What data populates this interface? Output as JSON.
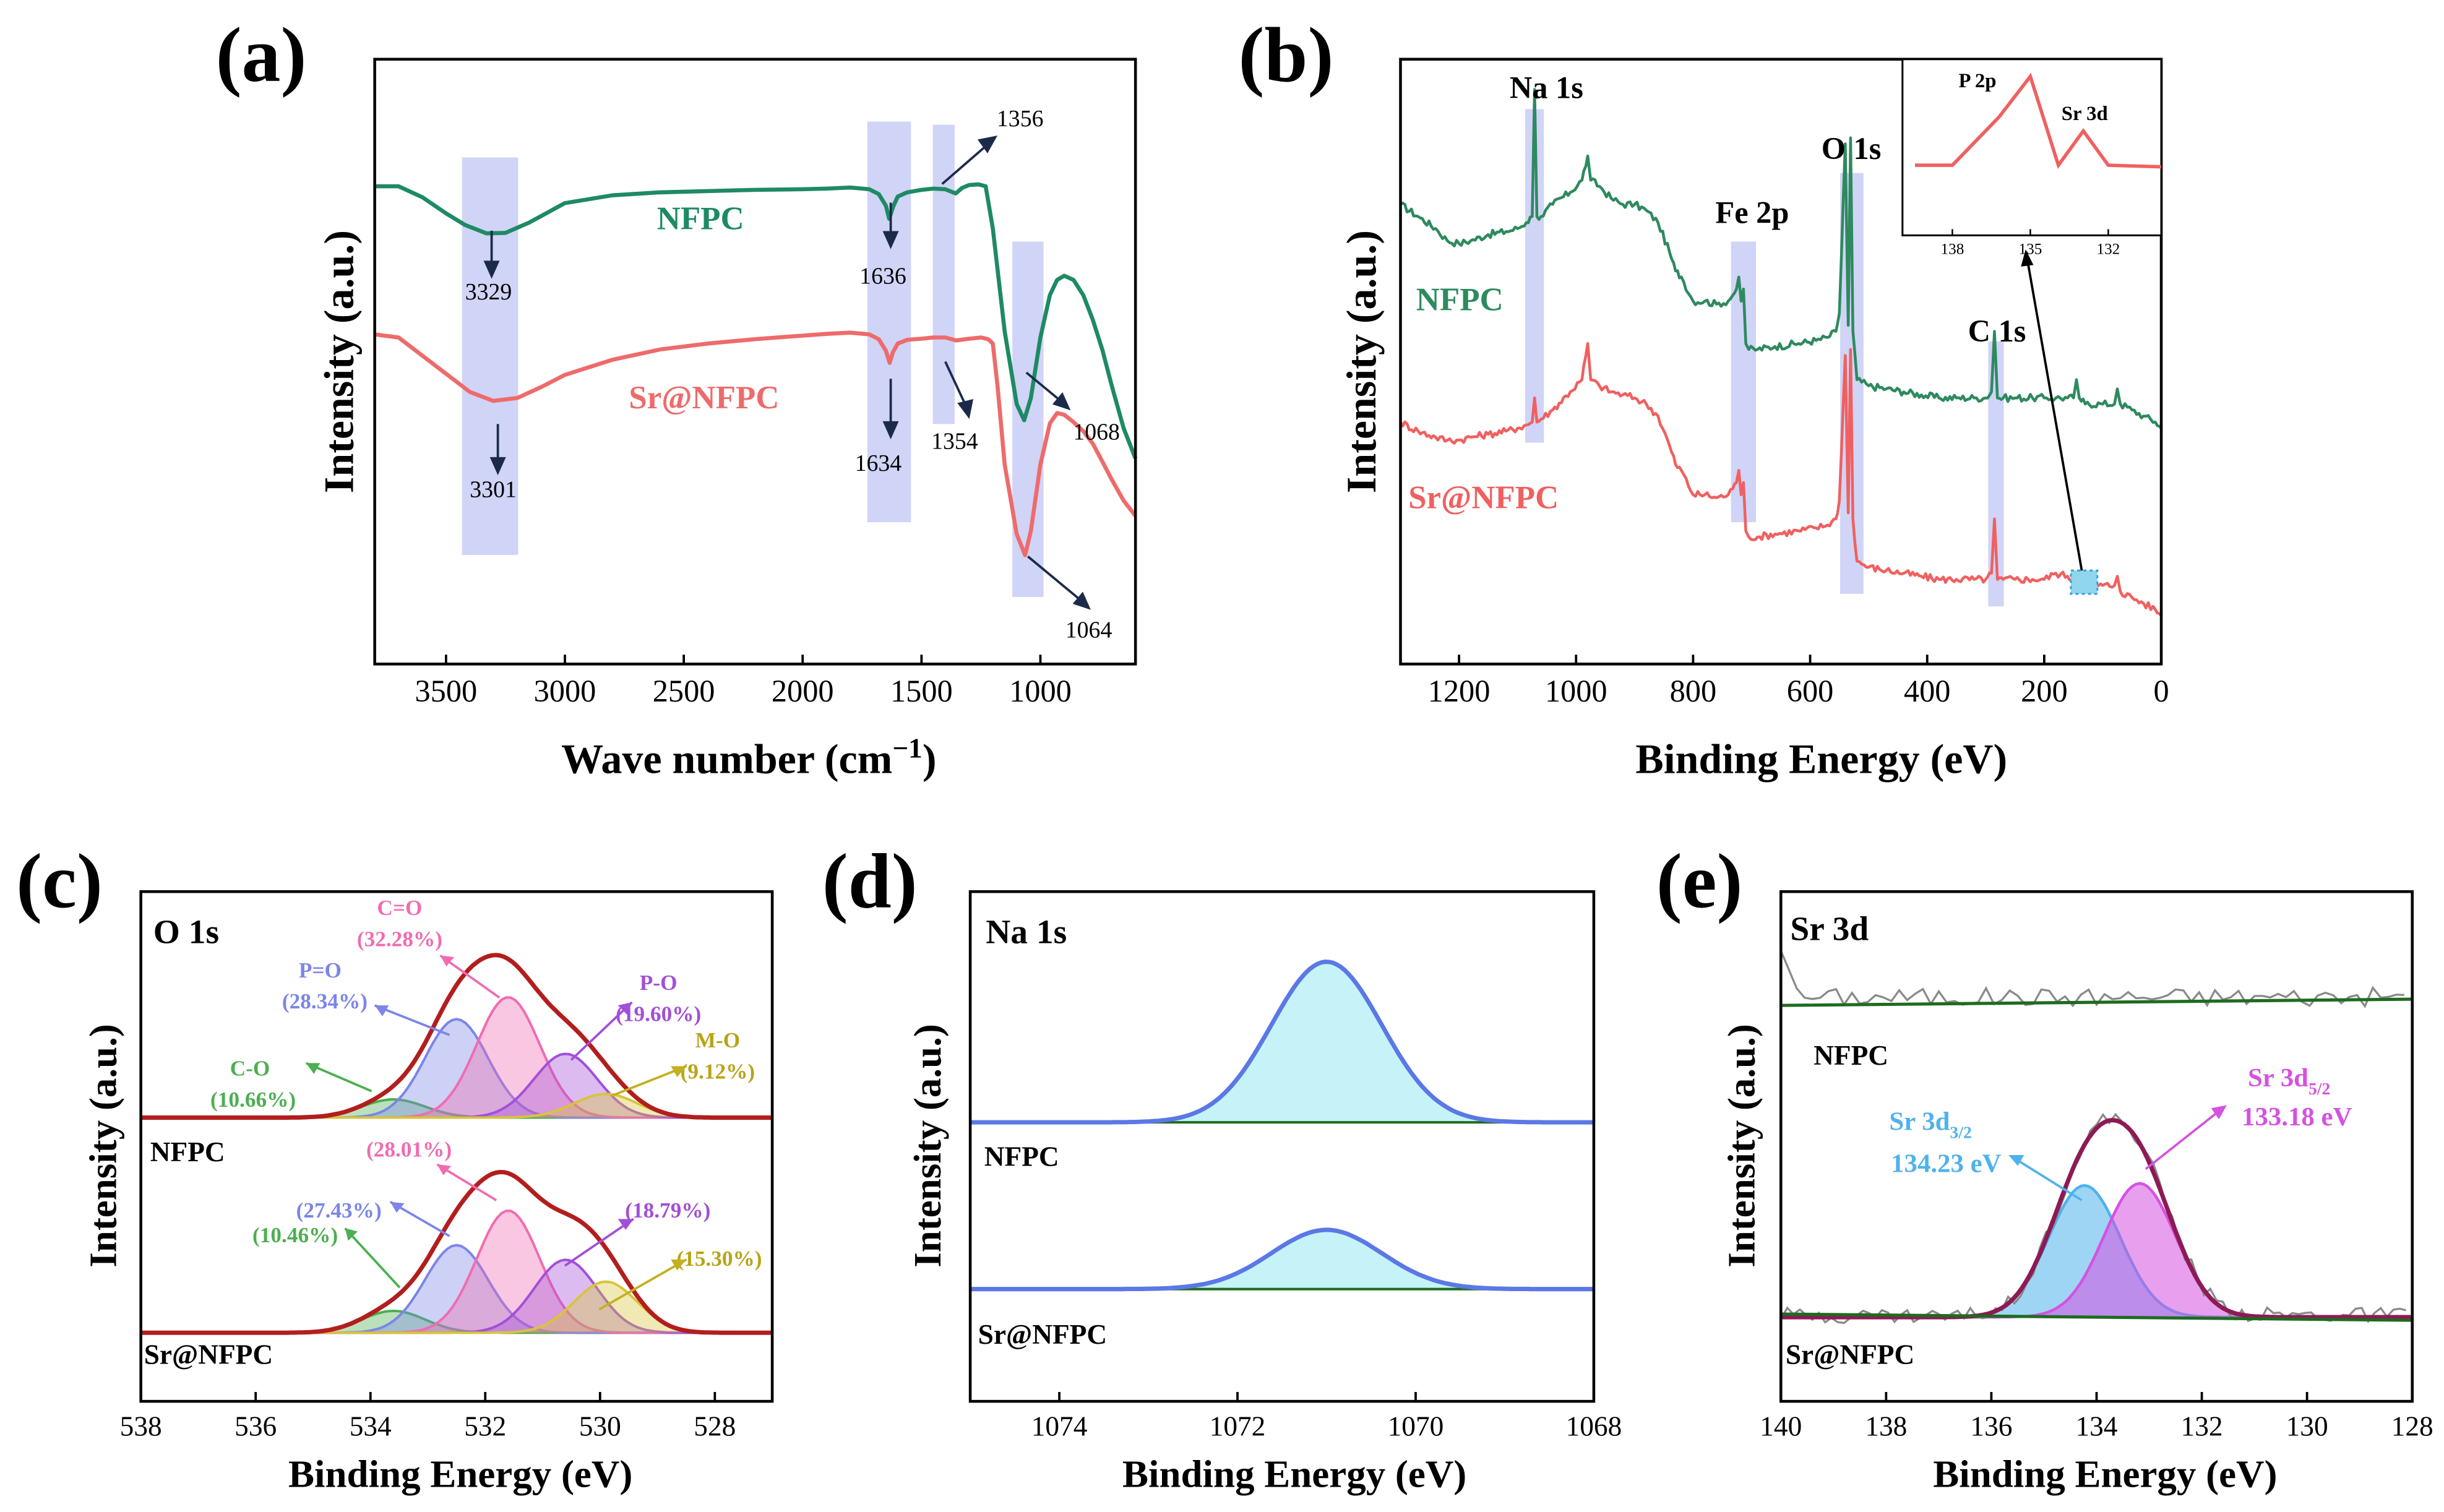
{
  "colors": {
    "nfpc_ftir": "#1e8a63",
    "sr_ftir": "#ee6b6b",
    "survey_nfpc": "#2e8a5e",
    "survey_sr": "#f06060",
    "highlight": "#c8ccf5",
    "envelope": "#b21e1e",
    "co": "#4caf50",
    "po": "#7c85e8",
    "cdo": "#f06cb0",
    "pso": "#a24fd8",
    "mo": "#d8c43b",
    "na": "#5b78e6",
    "sr32": "#4fb2ec",
    "sr52": "#d552e0",
    "sr_env": "#8d1a55",
    "baseline": "#1f6b1f",
    "raw": "#8a8a8a",
    "inset_line": "#f06060"
  },
  "chart_data": [
    {
      "panel": "(a)",
      "type": "line",
      "xlabel_main": "Wave number (cm",
      "xlabel_sup": "−1",
      "xlabel_end": ")",
      "ylabel": "Intensity (a.u.)",
      "xlim": [
        3800,
        600
      ],
      "ticks": [
        3500,
        3000,
        2500,
        2000,
        1500,
        1000
      ],
      "series": [
        {
          "name": "NFPC",
          "x": [
            3800,
            3700,
            3600,
            3500,
            3420,
            3330,
            3250,
            3150,
            3000,
            2800,
            2600,
            2400,
            2200,
            2000,
            1900,
            1800,
            1720,
            1680,
            1650,
            1636,
            1620,
            1600,
            1560,
            1500,
            1450,
            1400,
            1356,
            1330,
            1300,
            1260,
            1230,
            1200,
            1150,
            1100,
            1068,
            1040,
            1000,
            960,
            930,
            900,
            860,
            820,
            780,
            740,
            700,
            650,
            600
          ],
          "y": [
            0.79,
            0.79,
            0.772,
            0.745,
            0.726,
            0.712,
            0.713,
            0.73,
            0.762,
            0.775,
            0.78,
            0.782,
            0.784,
            0.785,
            0.786,
            0.788,
            0.785,
            0.777,
            0.758,
            0.736,
            0.756,
            0.773,
            0.78,
            0.784,
            0.786,
            0.785,
            0.778,
            0.787,
            0.792,
            0.793,
            0.79,
            0.72,
            0.55,
            0.43,
            0.403,
            0.44,
            0.54,
            0.61,
            0.635,
            0.642,
            0.635,
            0.61,
            0.57,
            0.52,
            0.46,
            0.39,
            0.34
          ]
        },
        {
          "name": "Sr@NFPC",
          "x": [
            3800,
            3700,
            3600,
            3500,
            3400,
            3301,
            3200,
            3100,
            3000,
            2800,
            2600,
            2400,
            2200,
            2000,
            1900,
            1800,
            1720,
            1680,
            1650,
            1634,
            1620,
            1600,
            1560,
            1500,
            1450,
            1400,
            1354,
            1300,
            1250,
            1220,
            1200,
            1180,
            1150,
            1100,
            1064,
            1040,
            1000,
            960,
            930,
            900,
            860,
            820,
            780,
            740,
            700,
            650,
            600
          ],
          "y": [
            0.545,
            0.54,
            0.51,
            0.48,
            0.45,
            0.435,
            0.44,
            0.458,
            0.478,
            0.503,
            0.52,
            0.53,
            0.537,
            0.543,
            0.546,
            0.548,
            0.545,
            0.537,
            0.518,
            0.498,
            0.516,
            0.53,
            0.536,
            0.538,
            0.54,
            0.54,
            0.535,
            0.538,
            0.54,
            0.537,
            0.53,
            0.46,
            0.33,
            0.215,
            0.18,
            0.22,
            0.33,
            0.398,
            0.415,
            0.412,
            0.4,
            0.385,
            0.365,
            0.335,
            0.305,
            0.27,
            0.245
          ]
        }
      ],
      "series_labels": [
        "NFPC",
        "Sr@NFPC"
      ],
      "annotations": [
        "3329",
        "3301",
        "1636",
        "1634",
        "1356",
        "1354",
        "1068",
        "1064"
      ]
    },
    {
      "panel": "(b)",
      "type": "line",
      "xlabel": "Binding Energy (eV)",
      "ylabel": "Intensity (a.u.)",
      "xlim": [
        1300,
        0
      ],
      "ticks": [
        1200,
        1000,
        800,
        600,
        400,
        200,
        0
      ],
      "series": [
        {
          "name": "NFPC",
          "x": [
            1300,
            1270,
            1240,
            1220,
            1200,
            1180,
            1150,
            1120,
            1100,
            1085,
            1075,
            1071,
            1067,
            1060,
            1040,
            1010,
            990,
            980,
            975,
            960,
            940,
            920,
            900,
            880,
            860,
            840,
            830,
            820,
            800,
            780,
            760,
            740,
            732,
            726,
            722,
            718,
            714,
            710,
            705,
            690,
            660,
            620,
            590,
            570,
            556,
            550,
            540,
            535,
            531,
            527,
            520,
            500,
            470,
            440,
            410,
            380,
            350,
            320,
            300,
            290,
            285,
            280,
            270,
            250,
            220,
            200,
            180,
            160,
            150,
            145,
            140,
            130,
            100,
            80,
            75,
            70,
            50,
            30,
            10,
            0
          ],
          "y": [
            0.76,
            0.74,
            0.72,
            0.7,
            0.695,
            0.7,
            0.71,
            0.715,
            0.72,
            0.73,
            0.74,
            0.95,
            0.74,
            0.74,
            0.76,
            0.78,
            0.8,
            0.84,
            0.8,
            0.79,
            0.77,
            0.76,
            0.76,
            0.75,
            0.73,
            0.68,
            0.65,
            0.64,
            0.6,
            0.6,
            0.595,
            0.6,
            0.61,
            0.62,
            0.64,
            0.6,
            0.62,
            0.53,
            0.52,
            0.52,
            0.525,
            0.53,
            0.535,
            0.54,
            0.55,
            0.58,
            0.86,
            0.56,
            0.87,
            0.55,
            0.47,
            0.46,
            0.455,
            0.45,
            0.445,
            0.44,
            0.44,
            0.44,
            0.44,
            0.45,
            0.55,
            0.44,
            0.44,
            0.44,
            0.44,
            0.44,
            0.44,
            0.44,
            0.44,
            0.47,
            0.44,
            0.43,
            0.43,
            0.43,
            0.455,
            0.43,
            0.42,
            0.41,
            0.4,
            0.39
          ]
        },
        {
          "name": "Sr@NFPC",
          "x": [
            1300,
            1270,
            1240,
            1220,
            1200,
            1180,
            1150,
            1120,
            1100,
            1085,
            1075,
            1071,
            1067,
            1060,
            1040,
            1010,
            990,
            980,
            975,
            960,
            940,
            920,
            900,
            880,
            860,
            840,
            830,
            820,
            800,
            780,
            760,
            740,
            732,
            726,
            722,
            718,
            714,
            710,
            705,
            690,
            660,
            620,
            590,
            570,
            556,
            550,
            540,
            535,
            531,
            527,
            520,
            500,
            470,
            440,
            410,
            380,
            350,
            320,
            300,
            290,
            285,
            280,
            270,
            250,
            220,
            200,
            180,
            160,
            150,
            145,
            140,
            130,
            100,
            80,
            75,
            70,
            50,
            30,
            10,
            0
          ],
          "y": [
            0.4,
            0.385,
            0.375,
            0.37,
            0.37,
            0.375,
            0.38,
            0.385,
            0.39,
            0.395,
            0.4,
            0.44,
            0.4,
            0.405,
            0.42,
            0.45,
            0.47,
            0.53,
            0.47,
            0.46,
            0.45,
            0.445,
            0.44,
            0.43,
            0.41,
            0.36,
            0.33,
            0.32,
            0.28,
            0.28,
            0.275,
            0.28,
            0.29,
            0.3,
            0.32,
            0.28,
            0.3,
            0.22,
            0.21,
            0.21,
            0.215,
            0.22,
            0.225,
            0.23,
            0.24,
            0.27,
            0.51,
            0.25,
            0.52,
            0.24,
            0.17,
            0.16,
            0.155,
            0.15,
            0.145,
            0.14,
            0.14,
            0.14,
            0.14,
            0.15,
            0.24,
            0.14,
            0.14,
            0.14,
            0.14,
            0.14,
            0.15,
            0.145,
            0.14,
            0.15,
            0.14,
            0.13,
            0.13,
            0.13,
            0.145,
            0.12,
            0.11,
            0.1,
            0.09,
            0.08
          ]
        }
      ],
      "series_labels": [
        "NFPC",
        "Sr@NFPC"
      ],
      "peak_labels": [
        "Na 1s",
        "Fe 2p",
        "O 1s",
        "C 1s"
      ],
      "inset": {
        "labels": [
          "P 2p",
          "Sr 3d"
        ],
        "ticks": [
          "138",
          "135",
          "132"
        ]
      }
    },
    {
      "panel": "(c)",
      "type": "area",
      "title": "O 1s",
      "xlabel": "Binding Energy (eV)",
      "ylabel": "Intensity (a.u.)",
      "xlim": [
        538,
        527
      ],
      "ticks": [
        538,
        536,
        534,
        532,
        530,
        528
      ],
      "labels": [
        "NFPC",
        "Sr@NFPC"
      ],
      "components": [
        {
          "name": "C-O",
          "center": 533.6,
          "nfpc_pct": "(10.66%)",
          "sr_pct": "(10.46%)"
        },
        {
          "name": "P=O",
          "center": 532.5,
          "nfpc_pct": "(28.34%)",
          "sr_pct": "(27.43%)"
        },
        {
          "name": "C=O",
          "center": 531.6,
          "nfpc_pct": "(32.28%)",
          "sr_pct": "(28.01%)"
        },
        {
          "name": "P-O",
          "center": 530.6,
          "nfpc_pct": "(19.60%)",
          "sr_pct": "(18.79%)"
        },
        {
          "name": "M-O",
          "center": 529.9,
          "nfpc_pct": "(9.12%)",
          "sr_pct": "(15.30%)"
        }
      ]
    },
    {
      "panel": "(d)",
      "type": "area",
      "title": "Na 1s",
      "xlabel": "Binding Energy (eV)",
      "ylabel": "Intensity (a.u.)",
      "xlim": [
        1075,
        1068
      ],
      "ticks": [
        1074,
        1072,
        1070,
        1068
      ],
      "peak_center": 1071,
      "labels": [
        "NFPC",
        "Sr@NFPC"
      ]
    },
    {
      "panel": "(e)",
      "type": "area",
      "title": "Sr 3d",
      "xlabel": "Binding Energy (eV)",
      "ylabel": "Intensity (a.u.)",
      "xlim": [
        140,
        128
      ],
      "ticks": [
        140,
        138,
        136,
        134,
        132,
        130,
        128
      ],
      "labels": [
        "NFPC",
        "Sr@NFPC"
      ],
      "components": [
        {
          "name": "Sr 3d",
          "sub": "3/2",
          "value": "134.23 eV",
          "center": 134.23
        },
        {
          "name": "Sr 3d",
          "sub": "5/2",
          "value": "133.18 eV",
          "center": 133.18
        }
      ]
    }
  ]
}
